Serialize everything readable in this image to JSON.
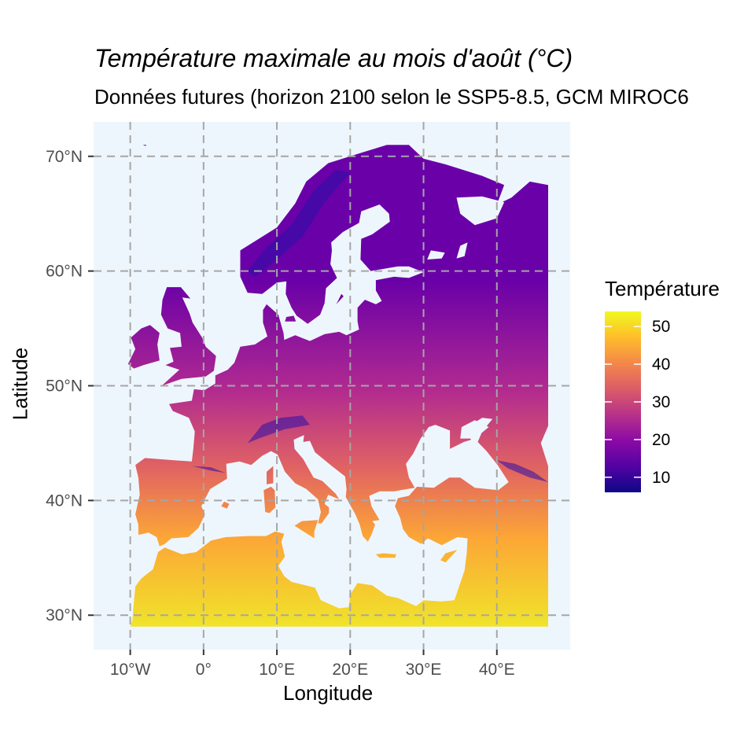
{
  "title": "Température maximale au mois d'août (°C)",
  "subtitle": "Données futures (horizon 2100 selon le SSP5-8.5, GCM MIROC6",
  "map": {
    "xlabel": "Longitude",
    "ylabel": "Latitude",
    "x_ticks": [
      {
        "lon": -10,
        "label": "10°W"
      },
      {
        "lon": 0,
        "label": "0°"
      },
      {
        "lon": 10,
        "label": "10°E"
      },
      {
        "lon": 20,
        "label": "20°E"
      },
      {
        "lon": 30,
        "label": "30°E"
      },
      {
        "lon": 40,
        "label": "40°E"
      }
    ],
    "y_ticks": [
      {
        "lat": 30,
        "label": "30°N"
      },
      {
        "lat": 40,
        "label": "40°N"
      },
      {
        "lat": 50,
        "label": "50°N"
      },
      {
        "lat": 60,
        "label": "60°N"
      },
      {
        "lat": 70,
        "label": "70°N"
      }
    ],
    "lon_range": [
      -15,
      50
    ],
    "lat_range": [
      27,
      73
    ],
    "grid": true,
    "background_color": "#eef6fd",
    "grid_color": "#a6a6a6",
    "colors": {
      "cold": "#2a0ea8",
      "cool": "#6a00a8",
      "mid": "#b12a90",
      "warm": "#e16462",
      "hot": "#fca636",
      "hottest": "#f0e42a"
    }
  },
  "legend": {
    "title": "Température",
    "min": 6,
    "max": 54,
    "ticks": [
      10,
      20,
      30,
      40,
      50
    ],
    "colormap": [
      "#0d0887",
      "#5302a3",
      "#8b0aa5",
      "#b83289",
      "#db5c68",
      "#f48849",
      "#febd2a",
      "#f0f921"
    ]
  }
}
